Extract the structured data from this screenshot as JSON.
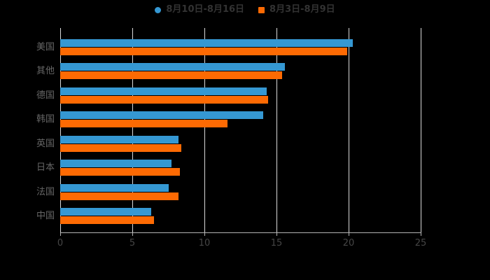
{
  "colors": {
    "background": "#000000",
    "series_blue": "#3598d3",
    "series_orange": "#fd6a03",
    "gridline": "#d9d9d9",
    "axis_line": "#b3b3b3",
    "legend_text": "#333333",
    "category_label": "#666666",
    "tick_label": "#454545"
  },
  "chart_data": {
    "type": "bar",
    "orientation": "horizontal",
    "title": "",
    "xlabel": "",
    "ylabel": "",
    "grid": true,
    "legend_position": "top",
    "xlim": [
      0,
      25
    ],
    "xticks": [
      0,
      5,
      10,
      15,
      20,
      25
    ],
    "categories": [
      "美国",
      "其他",
      "德国",
      "韩国",
      "英国",
      "日本",
      "法国",
      "中国"
    ],
    "series": [
      {
        "name": "8月10日-8月16日",
        "color": "#3598d3",
        "marker": "circle",
        "values": [
          20.3,
          15.6,
          14.3,
          14.1,
          8.2,
          7.7,
          7.5,
          6.3
        ]
      },
      {
        "name": "8月3日-8月9日",
        "color": "#fd6a03",
        "marker": "square",
        "values": [
          19.9,
          15.4,
          14.4,
          11.6,
          8.4,
          8.3,
          8.2,
          6.5
        ]
      }
    ]
  }
}
